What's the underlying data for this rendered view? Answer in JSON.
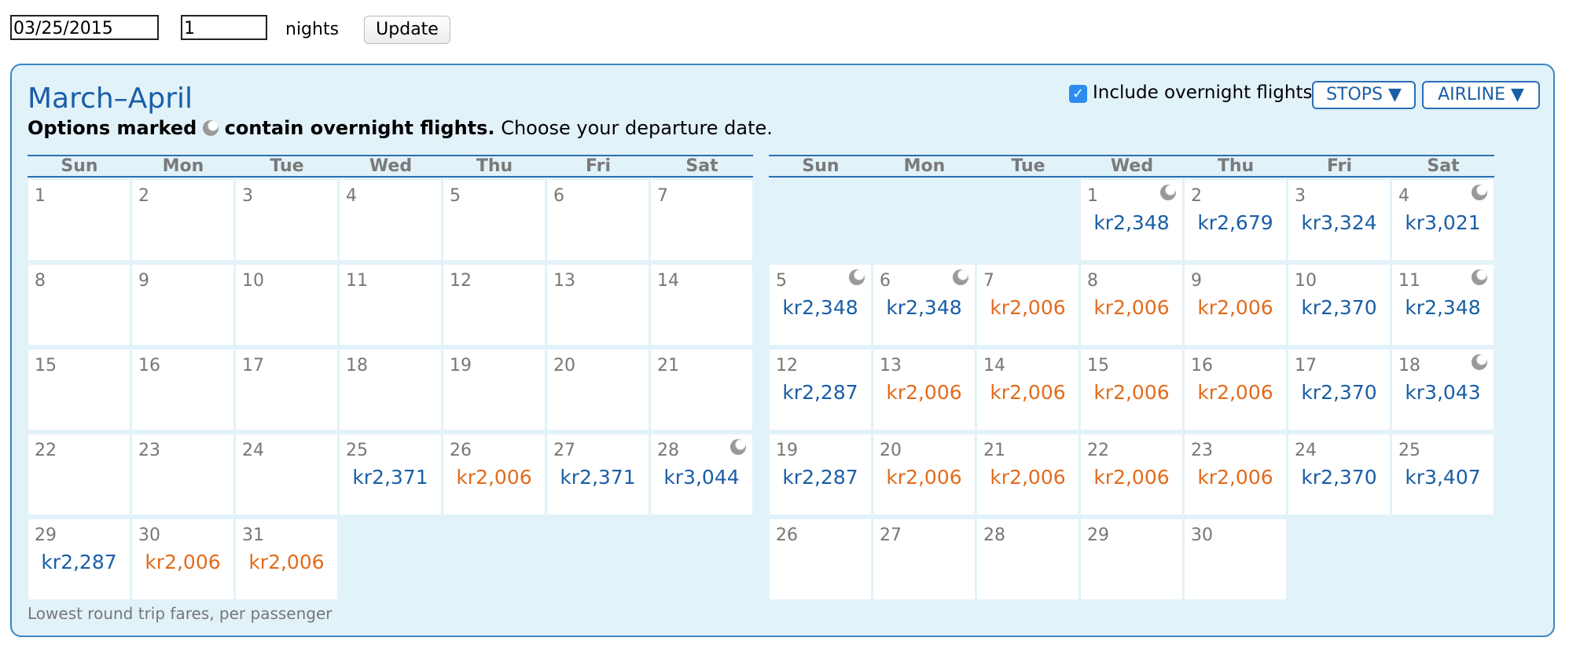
{
  "form": {
    "date": "03/25/2015",
    "nights_value": "1",
    "nights_label": "nights",
    "update": "Update"
  },
  "panel": {
    "title": "March–April",
    "note_bold_1": "Options marked",
    "note_bold_2": "contain overnight flights.",
    "note": "Choose your departure date.",
    "overnight_label": "Include overnight flights",
    "overnight_checked": true,
    "stops": "STOPS ▼",
    "airline": "AIRLINE ▼",
    "footer": "Lowest round trip fares, per passenger"
  },
  "colors": {
    "low": "#e26b1c",
    "regular": "#1a5ea6"
  },
  "weekdays": [
    "Sun",
    "Mon",
    "Tue",
    "Wed",
    "Thu",
    "Fri",
    "Sat"
  ],
  "months": [
    {
      "weeks": [
        [
          {
            "day": 1
          },
          {
            "day": 2
          },
          {
            "day": 3
          },
          {
            "day": 4
          },
          {
            "day": 5
          },
          {
            "day": 6
          },
          {
            "day": 7
          }
        ],
        [
          {
            "day": 8
          },
          {
            "day": 9
          },
          {
            "day": 10
          },
          {
            "day": 11
          },
          {
            "day": 12
          },
          {
            "day": 13
          },
          {
            "day": 14
          }
        ],
        [
          {
            "day": 15
          },
          {
            "day": 16
          },
          {
            "day": 17
          },
          {
            "day": 18
          },
          {
            "day": 19
          },
          {
            "day": 20
          },
          {
            "day": 21
          }
        ],
        [
          {
            "day": 22
          },
          {
            "day": 23
          },
          {
            "day": 24
          },
          {
            "day": 25,
            "price": "kr2,371"
          },
          {
            "day": 26,
            "price": "kr2,006",
            "low": true
          },
          {
            "day": 27,
            "price": "kr2,371"
          },
          {
            "day": 28,
            "price": "kr3,044",
            "overnight": true
          }
        ],
        [
          {
            "day": 29,
            "price": "kr2,287"
          },
          {
            "day": 30,
            "price": "kr2,006",
            "low": true
          },
          {
            "day": 31,
            "price": "kr2,006",
            "low": true
          },
          null,
          null,
          null,
          null
        ]
      ]
    },
    {
      "weeks": [
        [
          null,
          null,
          null,
          {
            "day": 1,
            "price": "kr2,348",
            "overnight": true
          },
          {
            "day": 2,
            "price": "kr2,679"
          },
          {
            "day": 3,
            "price": "kr3,324"
          },
          {
            "day": 4,
            "price": "kr3,021",
            "overnight": true
          }
        ],
        [
          {
            "day": 5,
            "price": "kr2,348",
            "overnight": true
          },
          {
            "day": 6,
            "price": "kr2,348",
            "overnight": true
          },
          {
            "day": 7,
            "price": "kr2,006",
            "low": true
          },
          {
            "day": 8,
            "price": "kr2,006",
            "low": true
          },
          {
            "day": 9,
            "price": "kr2,006",
            "low": true
          },
          {
            "day": 10,
            "price": "kr2,370"
          },
          {
            "day": 11,
            "price": "kr2,348",
            "overnight": true
          }
        ],
        [
          {
            "day": 12,
            "price": "kr2,287"
          },
          {
            "day": 13,
            "price": "kr2,006",
            "low": true
          },
          {
            "day": 14,
            "price": "kr2,006",
            "low": true
          },
          {
            "day": 15,
            "price": "kr2,006",
            "low": true
          },
          {
            "day": 16,
            "price": "kr2,006",
            "low": true
          },
          {
            "day": 17,
            "price": "kr2,370"
          },
          {
            "day": 18,
            "price": "kr3,043",
            "overnight": true
          }
        ],
        [
          {
            "day": 19,
            "price": "kr2,287"
          },
          {
            "day": 20,
            "price": "kr2,006",
            "low": true
          },
          {
            "day": 21,
            "price": "kr2,006",
            "low": true
          },
          {
            "day": 22,
            "price": "kr2,006",
            "low": true
          },
          {
            "day": 23,
            "price": "kr2,006",
            "low": true
          },
          {
            "day": 24,
            "price": "kr2,370"
          },
          {
            "day": 25,
            "price": "kr3,407"
          }
        ],
        [
          {
            "day": 26
          },
          {
            "day": 27
          },
          {
            "day": 28
          },
          {
            "day": 29
          },
          {
            "day": 30
          },
          null,
          null
        ]
      ]
    }
  ]
}
